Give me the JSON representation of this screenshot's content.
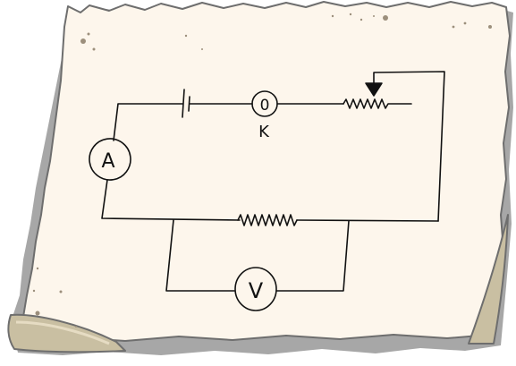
{
  "diagram": {
    "labels": {
      "ammeter": "A",
      "voltmeter": "V",
      "key_symbol": "0",
      "key_label": "K"
    },
    "components": {
      "cell": "cell-icon",
      "key": "plug-key-icon",
      "rheostat": "rheostat-icon",
      "resistor": "resistor-icon",
      "ammeter": "ammeter-icon",
      "voltmeter": "voltmeter-icon"
    },
    "colors": {
      "paper": "#fdf6ec",
      "paper_shadow": "#a7a7a7",
      "paper_outline": "#6e6e6e",
      "curl": "#c9bfa2",
      "wire": "#111111"
    }
  }
}
